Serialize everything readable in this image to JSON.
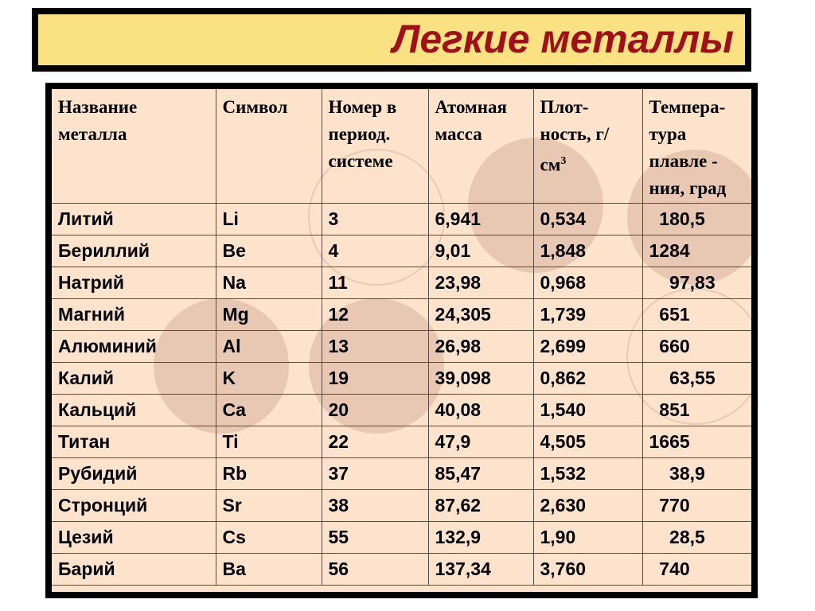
{
  "title": "Легкие металлы",
  "table": {
    "headers": [
      "Название металла",
      "Символ",
      "Номер в период. системе",
      "Атомная масса",
      "Плот-ность, г/ см",
      "Темпера-тура плавле - ния, град"
    ],
    "density_unit_superscript": "3",
    "rows": [
      [
        "Литий",
        "Li",
        "3",
        "6,941",
        "0,534",
        "  180,5"
      ],
      [
        "Бериллий",
        "Be",
        "4",
        "9,01",
        "1,848",
        "1284"
      ],
      [
        "Натрий",
        "Na",
        "11",
        "23,98",
        "0,968",
        "    97,83"
      ],
      [
        "Магний",
        "Mg",
        "12",
        "24,305",
        "1,739",
        "  651"
      ],
      [
        "Алюминий",
        "Al",
        "13",
        "26,98",
        "2,699",
        "  660"
      ],
      [
        "Калий",
        "K",
        "19",
        "39,098",
        "0,862",
        "    63,55"
      ],
      [
        "Кальций",
        "Ca",
        "20",
        "40,08",
        "1,540",
        "  851"
      ],
      [
        "Титан",
        "Ti",
        "22",
        "47,9",
        "4,505",
        "1665"
      ],
      [
        "Рубидий",
        "Rb",
        "37",
        "85,47",
        "1,532",
        "    38,9"
      ],
      [
        "Стронций",
        "Sr",
        "38",
        "87,62",
        "2,630",
        "  770"
      ],
      [
        "Цезий",
        "Cs",
        "55",
        "132,9",
        "1,90",
        "    28,5"
      ],
      [
        "Барий",
        "Ba",
        "56",
        "137,34",
        "3,760",
        "  740"
      ]
    ]
  },
  "colors": {
    "title_text": "#A0101C",
    "title_bg": "#FAE283",
    "table_bg": "#FDE3CC",
    "border": "#000000"
  }
}
